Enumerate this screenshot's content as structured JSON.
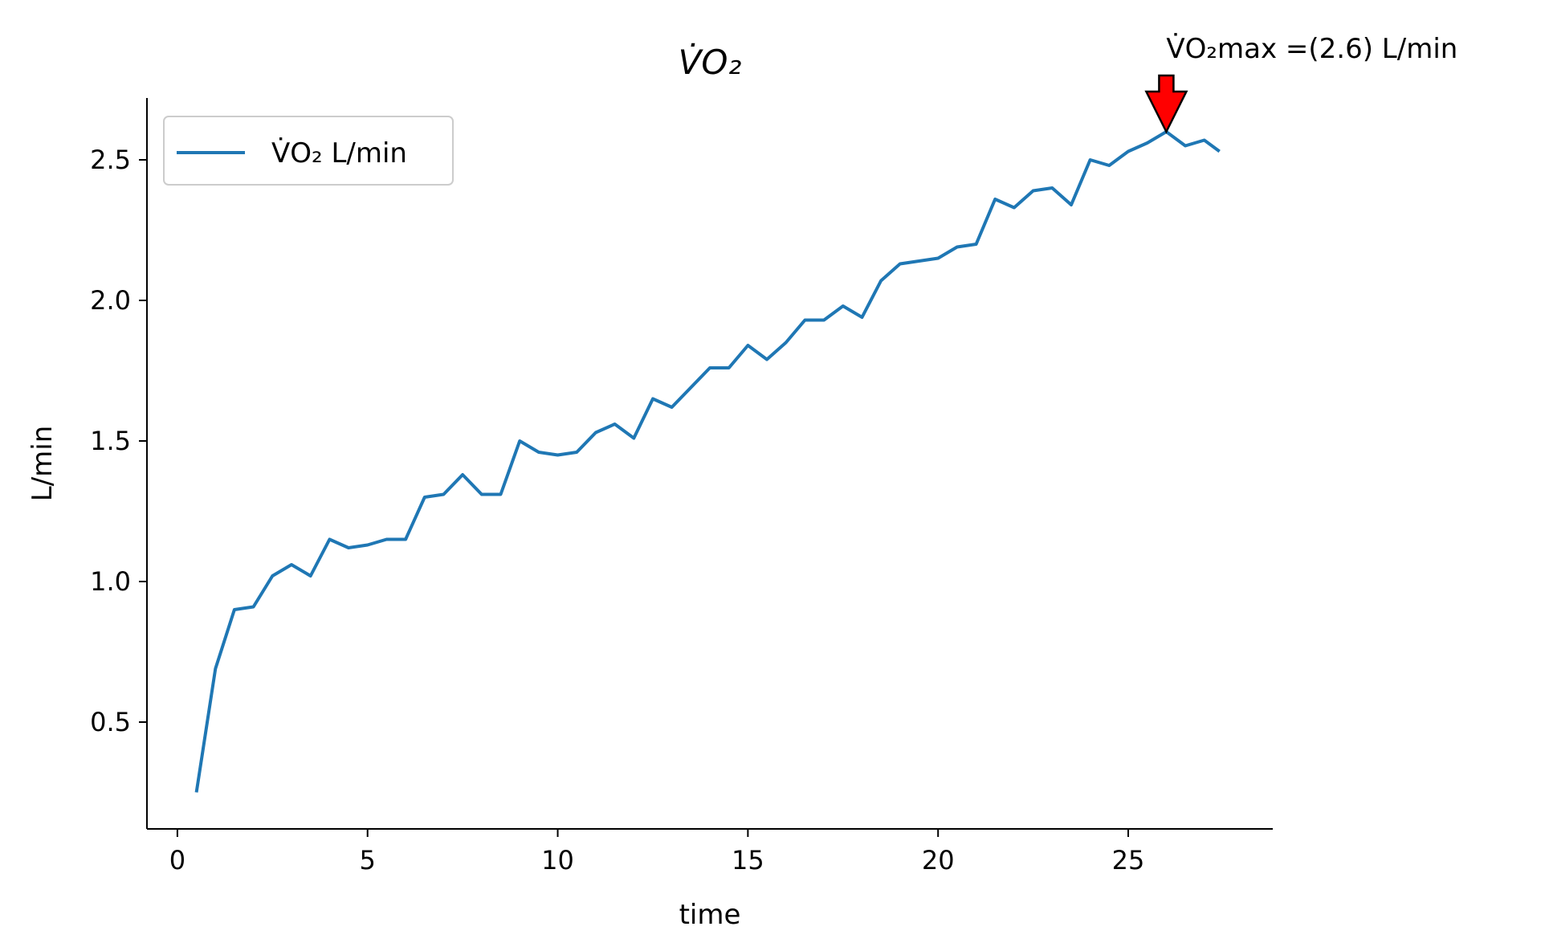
{
  "chart_data": {
    "type": "line",
    "title": "V̇O₂",
    "xlabel": "time",
    "ylabel": "L/min",
    "xlim": [
      -0.8,
      28.8
    ],
    "ylim": [
      0.12,
      2.72
    ],
    "x_ticks": [
      0,
      5,
      10,
      15,
      20,
      25
    ],
    "y_ticks": [
      0.5,
      1.0,
      1.5,
      2.0,
      2.5
    ],
    "y_tick_labels": [
      "0.5",
      "1.0",
      "1.5",
      "2.0",
      "2.5"
    ],
    "grid": false,
    "legend_position": "upper-left",
    "series": [
      {
        "name": "V̇O₂ L/min",
        "color": "#1f77b4",
        "x": [
          0.5,
          1.0,
          1.5,
          2.0,
          2.5,
          3.0,
          3.5,
          4.0,
          4.5,
          5.0,
          5.5,
          6.0,
          6.5,
          7.0,
          7.5,
          8.0,
          8.5,
          9.0,
          9.5,
          10.0,
          10.5,
          11.0,
          11.5,
          12.0,
          12.5,
          13.0,
          13.5,
          14.0,
          14.5,
          15.0,
          15.5,
          16.0,
          16.5,
          17.0,
          17.5,
          18.0,
          18.5,
          19.0,
          19.5,
          20.0,
          20.5,
          21.0,
          21.5,
          22.0,
          22.5,
          23.0,
          23.5,
          24.0,
          24.5,
          25.0,
          25.5,
          26.0,
          26.5,
          27.0,
          27.4
        ],
        "values": [
          0.25,
          0.69,
          0.9,
          0.91,
          1.02,
          1.06,
          1.02,
          1.15,
          1.12,
          1.13,
          1.15,
          1.15,
          1.3,
          1.31,
          1.38,
          1.31,
          1.31,
          1.5,
          1.46,
          1.45,
          1.46,
          1.53,
          1.56,
          1.51,
          1.65,
          1.62,
          1.69,
          1.76,
          1.76,
          1.84,
          1.79,
          1.85,
          1.93,
          1.93,
          1.98,
          1.94,
          2.07,
          2.13,
          2.14,
          2.15,
          2.19,
          2.2,
          2.36,
          2.33,
          2.39,
          2.4,
          2.34,
          2.5,
          2.48,
          2.53,
          2.56,
          2.6,
          2.55,
          2.57,
          2.53
        ]
      }
    ],
    "annotation": {
      "text": "V̇O₂max =(2.6) L/min",
      "x": 26.0,
      "y": 2.6,
      "arrow_color": "#ff0000"
    }
  }
}
